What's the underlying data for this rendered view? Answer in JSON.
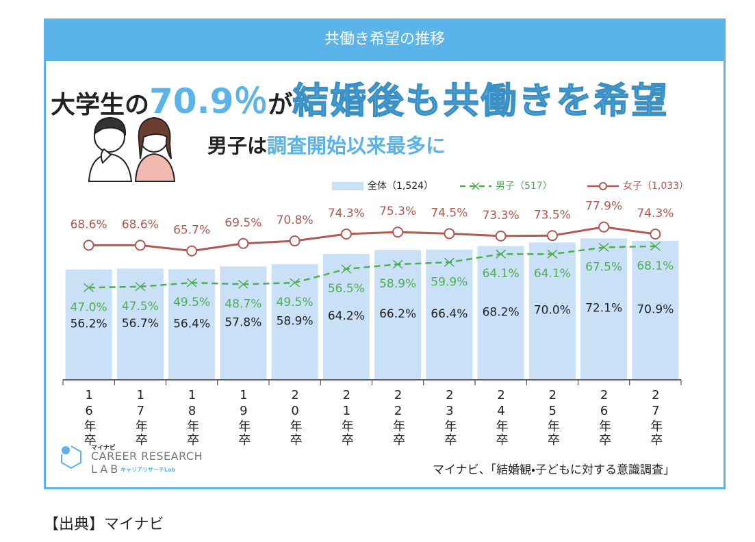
{
  "header": {
    "title": "共働き希望の推移",
    "headline": [
      "大学生の",
      "70.9％",
      "が",
      "結婚後も共働きを希望"
    ],
    "subheadline": [
      "男子は",
      "調査開始以来最多に"
    ]
  },
  "chart_data": {
    "type": "bar",
    "categories": [
      "16年卒",
      "17年卒",
      "18年卒",
      "19年卒",
      "20年卒",
      "21年卒",
      "22年卒",
      "23年卒",
      "24年卒",
      "25年卒",
      "26年卒",
      "27年卒"
    ],
    "ylim": [
      0,
      90
    ],
    "series": [
      {
        "name": "全体（1,524）",
        "type": "bar",
        "color": "#c9e0f7",
        "values": [
          56.2,
          56.7,
          56.4,
          57.8,
          58.9,
          64.2,
          66.2,
          66.4,
          68.2,
          70.0,
          72.1,
          70.9
        ],
        "value_labels": [
          "56.2%",
          "56.7%",
          "56.4%",
          "57.8%",
          "58.9%",
          "64.2%",
          "66.2%",
          "66.4%",
          "68.2%",
          "70.0%",
          "72.1%",
          "70.9%"
        ]
      },
      {
        "name": "男子（517）",
        "type": "line",
        "color": "#4caf50",
        "values": [
          47.0,
          47.5,
          49.5,
          48.7,
          49.5,
          56.5,
          58.9,
          59.9,
          64.1,
          64.1,
          67.5,
          68.1
        ],
        "value_labels": [
          "47.0%",
          "47.5%",
          "49.5%",
          "48.7%",
          "49.5%",
          "56.5%",
          "58.9%",
          "59.9%",
          "64.1%",
          "64.1%",
          "67.5%",
          "68.1%"
        ]
      },
      {
        "name": "女子（1,033）",
        "type": "line",
        "color": "#b4584f",
        "values": [
          68.6,
          68.6,
          65.7,
          69.5,
          70.8,
          74.3,
          75.3,
          74.5,
          73.3,
          73.5,
          77.9,
          74.3
        ],
        "value_labels": [
          "68.6%",
          "68.6%",
          "65.7%",
          "69.5%",
          "70.8%",
          "74.3%",
          "75.3%",
          "74.5%",
          "73.3%",
          "73.5%",
          "77.9%",
          "74.3%"
        ]
      }
    ]
  },
  "logo": {
    "brand": "マイナビ",
    "line1": "CAREER RESEARCH",
    "line2": "LAB",
    "tagline": "キャリアリサーチLab"
  },
  "source": "マイナビ、「結婚観・子どもに対する意識調査」",
  "footer": "【出典】マイナビ"
}
